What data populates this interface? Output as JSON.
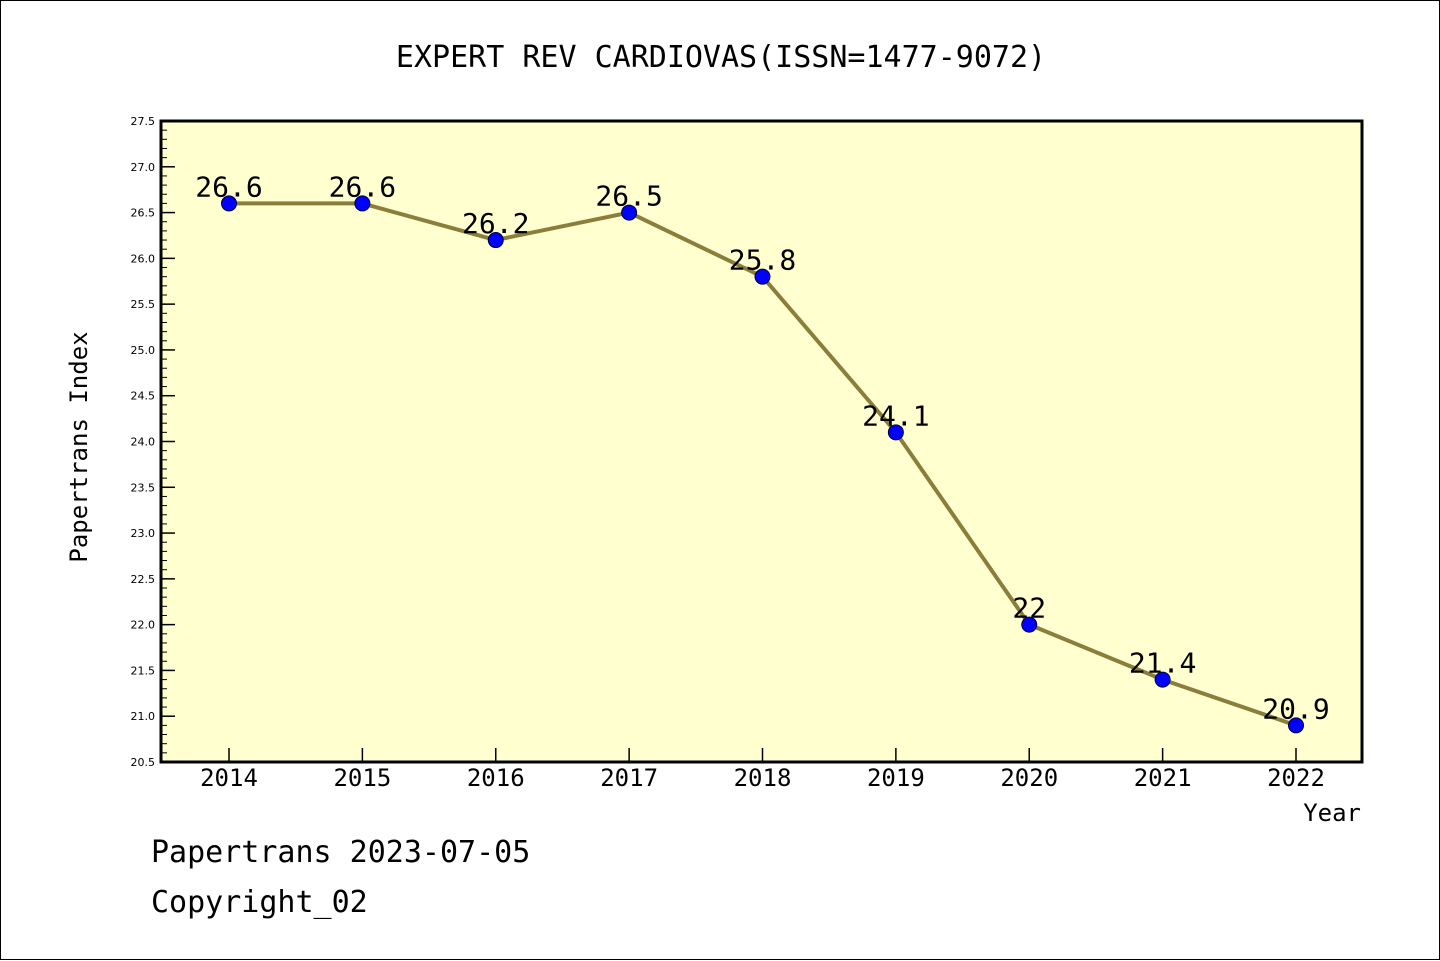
{
  "chart_data": {
    "type": "line",
    "title": "EXPERT REV CARDIOVAS(ISSN=1477-9072)",
    "xlabel": "Year",
    "ylabel": "Papertrans Index",
    "categories": [
      "2014",
      "2015",
      "2016",
      "2017",
      "2018",
      "2019",
      "2020",
      "2021",
      "2022"
    ],
    "values": [
      26.6,
      26.6,
      26.2,
      26.5,
      25.8,
      24.1,
      22,
      21.4,
      20.9
    ],
    "value_labels": [
      "26.6",
      "26.6",
      "26.2",
      "26.5",
      "25.8",
      "24.1",
      "22",
      "21.4",
      "20.9"
    ],
    "ylim": [
      20.5,
      27.5
    ],
    "yticks": [
      "20.5",
      "21.0",
      "21.5",
      "22.0",
      "22.5",
      "23.0",
      "23.5",
      "24.0",
      "24.5",
      "25.0",
      "25.5",
      "26.0",
      "26.5",
      "27.0",
      "27.5"
    ],
    "grid": false,
    "colors": {
      "plot_background": "#FFFFD0",
      "line": "#8B7D3A",
      "marker": "#0000FF"
    }
  },
  "footer": {
    "date_text": "Papertrans 2023-07-05",
    "copyright_text": "Copyright_02"
  }
}
